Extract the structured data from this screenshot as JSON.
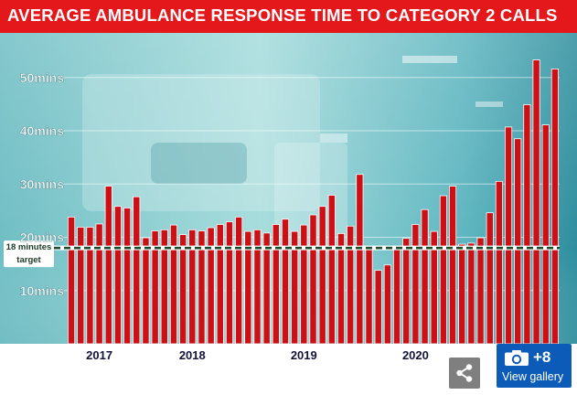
{
  "title": "AVERAGE AMBULANCE RESPONSE TIME TO CATEGORY 2 CALLS",
  "colors": {
    "title_bar": "#e4171b",
    "bar_fill": "#cc1016",
    "bar_edge": "#ffffff",
    "target_line": "#1f4a2c",
    "photo_background": "#8dd0d2",
    "gallery_button": "#0c5bb8",
    "share_button": "#7f7f7f"
  },
  "chart_data": {
    "type": "bar",
    "title": "AVERAGE AMBULANCE RESPONSE TIME TO CATEGORY 2 CALLS",
    "ylim": [
      0,
      55
    ],
    "grid": true,
    "y_ticks": [
      {
        "value": 10,
        "label": "10mins"
      },
      {
        "value": 20,
        "label": "20mins"
      },
      {
        "value": 30,
        "label": "30mins"
      },
      {
        "value": 40,
        "label": "40mins"
      },
      {
        "value": 50,
        "label": "50mins"
      }
    ],
    "x_labels": [
      {
        "label": "2017",
        "index": 3
      },
      {
        "label": "2018",
        "index": 13
      },
      {
        "label": "2019",
        "index": 25
      },
      {
        "label": "2020",
        "index": 37
      }
    ],
    "values": [
      23.8,
      21.9,
      21.9,
      22.5,
      29.6,
      25.8,
      25.5,
      27.6,
      19.9,
      21.2,
      21.4,
      22.3,
      20.5,
      21.4,
      21.2,
      21.8,
      22.4,
      22.9,
      23.8,
      21.1,
      21.4,
      20.8,
      22.4,
      23.4,
      21.1,
      22.3,
      24.2,
      25.8,
      27.9,
      20.7,
      22.1,
      31.8,
      18.2,
      13.8,
      14.8,
      17.7,
      19.8,
      22.4,
      25.2,
      21.1,
      27.8,
      29.6,
      18.7,
      18.9,
      19.9,
      24.6,
      30.5,
      40.7,
      38.5,
      44.9,
      53.3,
      41.1,
      51.6
    ],
    "target": {
      "value": 18,
      "label_line1": "18 minutes",
      "label_line2": "target"
    }
  },
  "gallery": {
    "count": "+8",
    "label": "View gallery",
    "icon": "camera-icon"
  },
  "share": {
    "icon": "share-icon"
  }
}
